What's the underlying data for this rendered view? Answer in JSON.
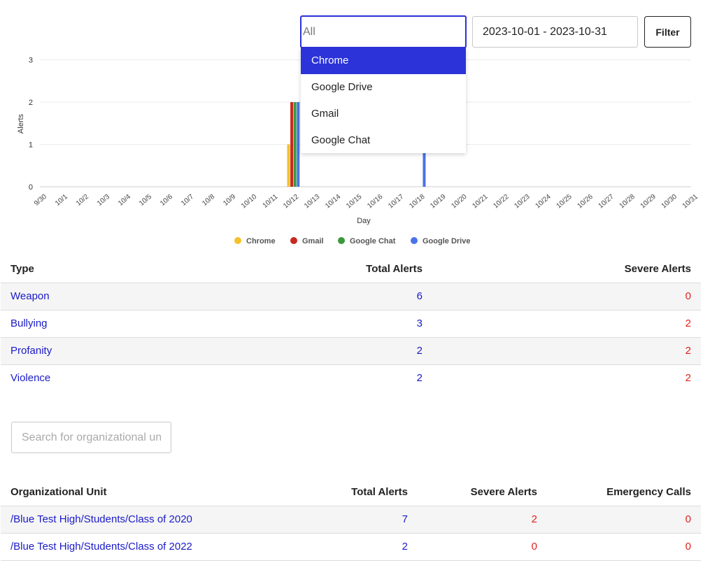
{
  "filters": {
    "source_placeholder": "All",
    "date_range": "2023-10-01 - 2023-10-31",
    "filter_label": "Filter",
    "options": [
      {
        "label": "Chrome",
        "active": true
      },
      {
        "label": "Google Drive",
        "active": false
      },
      {
        "label": "Gmail",
        "active": false
      },
      {
        "label": "Google Chat",
        "active": false
      }
    ]
  },
  "chart_data": {
    "type": "bar",
    "xlabel": "Day",
    "ylabel": "Alerts",
    "ylim": [
      0,
      3
    ],
    "yticks": [
      0,
      1,
      2,
      3
    ],
    "grid": true,
    "legend_position": "bottom",
    "categories": [
      "9/30",
      "10/1",
      "10/2",
      "10/3",
      "10/4",
      "10/5",
      "10/6",
      "10/7",
      "10/8",
      "10/9",
      "10/10",
      "10/11",
      "10/12",
      "10/13",
      "10/14",
      "10/15",
      "10/16",
      "10/17",
      "10/18",
      "10/19",
      "10/20",
      "10/21",
      "10/22",
      "10/23",
      "10/24",
      "10/25",
      "10/26",
      "10/27",
      "10/28",
      "10/29",
      "10/30",
      "10/31"
    ],
    "series": [
      {
        "name": "Chrome",
        "color": "#f5c02a",
        "values": [
          0,
          0,
          0,
          0,
          0,
          0,
          0,
          0,
          0,
          0,
          0,
          0,
          1,
          0,
          0,
          0,
          0,
          0,
          0,
          0,
          0,
          0,
          0,
          0,
          0,
          0,
          0,
          0,
          0,
          0,
          0,
          0
        ]
      },
      {
        "name": "Gmail",
        "color": "#c8281e",
        "values": [
          0,
          0,
          0,
          0,
          0,
          0,
          0,
          0,
          0,
          0,
          0,
          0,
          2,
          0,
          0,
          0,
          0,
          0,
          0,
          0,
          0,
          0,
          0,
          0,
          0,
          0,
          0,
          0,
          0,
          0,
          0,
          0
        ]
      },
      {
        "name": "Google Chat",
        "color": "#3a9a3c",
        "values": [
          0,
          0,
          0,
          0,
          0,
          0,
          0,
          0,
          0,
          0,
          0,
          0,
          2,
          0,
          0,
          0,
          0,
          0,
          0,
          0,
          0,
          0,
          0,
          0,
          0,
          0,
          0,
          0,
          0,
          0,
          0,
          0
        ]
      },
      {
        "name": "Google Drive",
        "color": "#4a72ea",
        "values": [
          0,
          0,
          0,
          0,
          0,
          0,
          0,
          0,
          0,
          0,
          0,
          0,
          2,
          0,
          0,
          0,
          0,
          0,
          1,
          0,
          0,
          0,
          0,
          0,
          0,
          0,
          0,
          0,
          0,
          0,
          0,
          0
        ]
      }
    ]
  },
  "type_table": {
    "headers": {
      "type": "Type",
      "total": "Total Alerts",
      "severe": "Severe Alerts"
    },
    "rows": [
      {
        "type": "Weapon",
        "total": "6",
        "severe": "0"
      },
      {
        "type": "Bullying",
        "total": "3",
        "severe": "2"
      },
      {
        "type": "Profanity",
        "total": "2",
        "severe": "2"
      },
      {
        "type": "Violence",
        "total": "2",
        "severe": "2"
      }
    ]
  },
  "org_search": {
    "placeholder": "Search for organizational unit"
  },
  "org_table": {
    "headers": {
      "unit": "Organizational Unit",
      "total": "Total Alerts",
      "severe": "Severe Alerts",
      "emergency": "Emergency Calls"
    },
    "rows": [
      {
        "unit": "/Blue Test High/Students/Class of 2020",
        "total": "7",
        "severe": "2",
        "emergency": "0"
      },
      {
        "unit": "/Blue Test High/Students/Class of 2022",
        "total": "2",
        "severe": "0",
        "emergency": "0"
      }
    ]
  },
  "colors": {
    "accent": "#2b33d9",
    "link": "#1a1ac8",
    "severe": "#e0201c"
  }
}
